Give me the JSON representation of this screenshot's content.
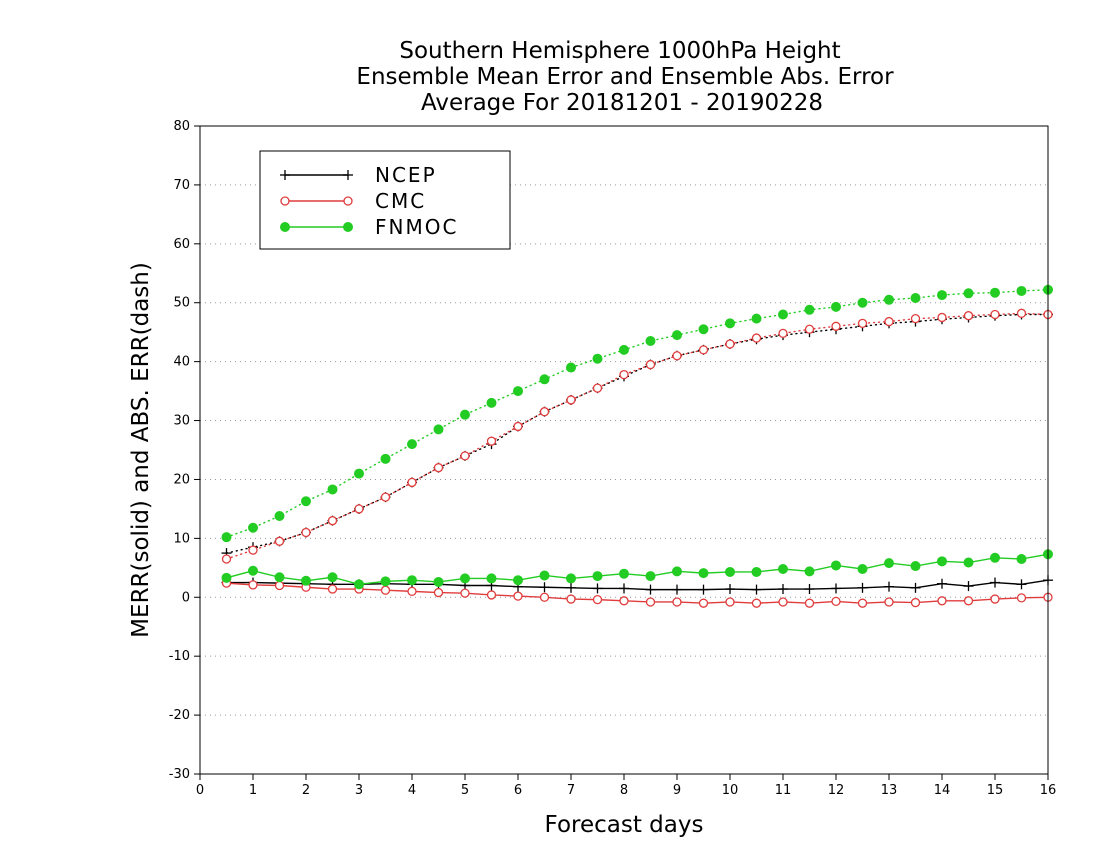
{
  "chart_data": {
    "type": "line",
    "title": [
      "Southern Hemisphere 1000hPa Height",
      "Ensemble Mean Error and Ensemble Abs. Error",
      "Average For 20181201 - 20190228"
    ],
    "xlabel": "Forecast days",
    "ylabel": "MERR(solid) and ABS. ERR(dash)",
    "xlim": [
      0,
      16
    ],
    "ylim": [
      -30,
      80
    ],
    "xticks": [
      0,
      1,
      2,
      3,
      4,
      5,
      6,
      7,
      8,
      9,
      10,
      11,
      12,
      13,
      14,
      15,
      16
    ],
    "yticks": [
      -30,
      -20,
      -10,
      0,
      10,
      20,
      30,
      40,
      50,
      60,
      70,
      80
    ],
    "grid": "horizontal dotted",
    "legend_position": "top-left",
    "x": [
      0.5,
      1,
      1.5,
      2,
      2.5,
      3,
      3.5,
      4,
      4.5,
      5,
      5.5,
      6,
      6.5,
      7,
      7.5,
      8,
      8.5,
      9,
      9.5,
      10,
      10.5,
      11,
      11.5,
      12,
      12.5,
      13,
      13.5,
      14,
      14.5,
      15,
      15.5,
      16
    ],
    "series": [
      {
        "name": "NCEP",
        "color": "#000000",
        "marker": "plus",
        "merr": [
          2.5,
          2.5,
          2.4,
          2.3,
          2.2,
          2.2,
          2.3,
          2.2,
          2.2,
          2.0,
          2.0,
          1.8,
          1.7,
          1.6,
          1.5,
          1.5,
          1.3,
          1.3,
          1.3,
          1.4,
          1.3,
          1.4,
          1.4,
          1.5,
          1.6,
          1.8,
          1.6,
          2.3,
          1.9,
          2.5,
          2.2,
          2.9
        ],
        "abs_err": [
          7.5,
          8.5,
          9.5,
          11.0,
          13.0,
          15.0,
          17.0,
          19.5,
          22.0,
          24.0,
          26.0,
          29.0,
          31.5,
          33.5,
          35.5,
          37.5,
          39.5,
          41.0,
          42.0,
          43.0,
          43.8,
          44.5,
          45.0,
          45.5,
          46.0,
          46.5,
          46.8,
          47.2,
          47.5,
          47.8,
          48.0,
          48.0
        ]
      },
      {
        "name": "CMC",
        "color": "#e03c3c",
        "marker": "open-circle",
        "merr": [
          2.4,
          2.1,
          2.0,
          1.7,
          1.4,
          1.4,
          1.2,
          1.0,
          0.8,
          0.7,
          0.4,
          0.2,
          0.0,
          -0.3,
          -0.4,
          -0.6,
          -0.8,
          -0.8,
          -1.0,
          -0.8,
          -1.0,
          -0.8,
          -1.0,
          -0.7,
          -1.0,
          -0.8,
          -0.9,
          -0.6,
          -0.6,
          -0.3,
          -0.1,
          0.0
        ],
        "abs_err": [
          6.5,
          8.0,
          9.5,
          11.0,
          13.0,
          15.0,
          17.0,
          19.5,
          22.0,
          24.0,
          26.5,
          29.0,
          31.5,
          33.5,
          35.5,
          37.8,
          39.5,
          41.0,
          42.0,
          43.0,
          44.0,
          44.8,
          45.5,
          46.0,
          46.5,
          46.8,
          47.3,
          47.5,
          47.8,
          48.0,
          48.2,
          48.0
        ]
      },
      {
        "name": "FNMOC",
        "color": "#22cc22",
        "marker": "filled-circle",
        "merr": [
          3.3,
          4.5,
          3.4,
          2.8,
          3.4,
          2.2,
          2.7,
          2.9,
          2.6,
          3.2,
          3.2,
          2.9,
          3.7,
          3.2,
          3.6,
          4.0,
          3.6,
          4.4,
          4.1,
          4.3,
          4.3,
          4.8,
          4.4,
          5.4,
          4.8,
          5.8,
          5.3,
          6.1,
          5.9,
          6.7,
          6.5,
          7.3
        ],
        "abs_err": [
          10.2,
          11.8,
          13.8,
          16.3,
          18.3,
          21.0,
          23.5,
          26.0,
          28.5,
          31.0,
          33.0,
          35.0,
          37.0,
          39.0,
          40.5,
          42.0,
          43.5,
          44.5,
          45.5,
          46.5,
          47.3,
          48.0,
          48.8,
          49.3,
          50.0,
          50.5,
          50.8,
          51.3,
          51.6,
          51.7,
          52.0,
          52.2
        ]
      }
    ]
  }
}
